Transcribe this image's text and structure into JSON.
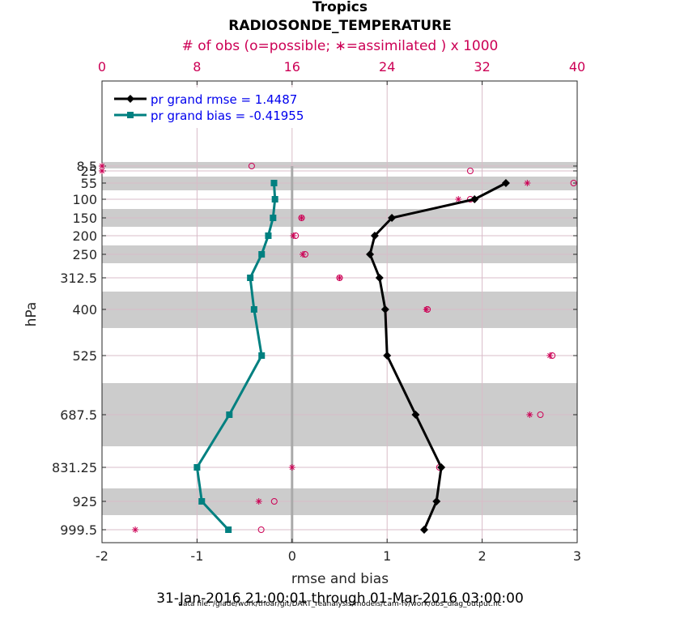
{
  "chart_data": {
    "type": "line",
    "title": "Tropics",
    "subtitle": "RADIOSONDE_TEMPERATURE",
    "top_axis_label": "# of obs (o=possible; ∗=assimilated ) x 1000",
    "top_ticks": [
      "0",
      "8",
      "16",
      "24",
      "32",
      "40"
    ],
    "top_range": [
      0,
      40
    ],
    "xlabel": "rmse and bias",
    "xlim": [
      -2,
      3
    ],
    "x_ticks": [
      "-2",
      "-1",
      "0",
      "1",
      "2",
      "3"
    ],
    "ylabel": "hPa",
    "levels": [
      "8.5",
      "25",
      "55",
      "100",
      "150",
      "200",
      "250",
      "312.5",
      "400",
      "525",
      "687.5",
      "831.25",
      "925",
      "999.5"
    ],
    "level_values": [
      8.5,
      25,
      55,
      100,
      150,
      200,
      250,
      312.5,
      400,
      525,
      687.5,
      831.25,
      925,
      999.5
    ],
    "series": [
      {
        "name": "pr grand rmse = 1.4487",
        "color": "#000000",
        "marker": "diamond",
        "levels": [
          55,
          100,
          150,
          200,
          250,
          312.5,
          400,
          525,
          687.5,
          831.25,
          925,
          999.5
        ],
        "values": [
          2.25,
          1.92,
          1.05,
          0.87,
          0.82,
          0.92,
          0.98,
          1.0,
          1.3,
          1.57,
          1.52,
          1.39
        ]
      },
      {
        "name": "pr grand bias = -0.41955",
        "color": "#008080",
        "marker": "square",
        "levels": [
          55,
          100,
          150,
          200,
          250,
          312.5,
          400,
          525,
          687.5,
          831.25,
          925,
          999.5
        ],
        "values": [
          -0.19,
          -0.18,
          -0.2,
          -0.25,
          -0.32,
          -0.44,
          -0.4,
          -0.32,
          -0.66,
          -1.0,
          -0.95,
          -0.67
        ]
      }
    ],
    "obs_possible": {
      "marker": "o",
      "color": "#cc0055",
      "levels": [
        8.5,
        25,
        55,
        100,
        150,
        200,
        250,
        312.5,
        400,
        525,
        687.5,
        831.25,
        925,
        999.5
      ],
      "values": [
        12.6,
        31.0,
        39.7,
        31.0,
        16.8,
        16.3,
        17.1,
        20.0,
        27.4,
        37.9,
        36.9,
        28.4,
        14.5,
        13.4
      ]
    },
    "obs_assimilated": {
      "marker": "*",
      "color": "#cc0055",
      "levels": [
        8.5,
        25,
        55,
        100,
        150,
        200,
        250,
        312.5,
        400,
        525,
        687.5,
        831.25,
        925,
        999.5
      ],
      "values": [
        0.0,
        0.0,
        35.8,
        30.0,
        16.8,
        16.1,
        16.9,
        20.0,
        27.3,
        37.7,
        36.0,
        16.0,
        13.2,
        2.8
      ]
    },
    "grid": true,
    "legend": "top-left"
  },
  "footer": {
    "date_range": "31-Jan-2016 21:00:01 through 01-Mar-2016 03:00:00",
    "data_file": "data file: /glade/work/thoar/git/DART_reanalysis/models/cam-fv/work/obs_diag_output.nc"
  }
}
